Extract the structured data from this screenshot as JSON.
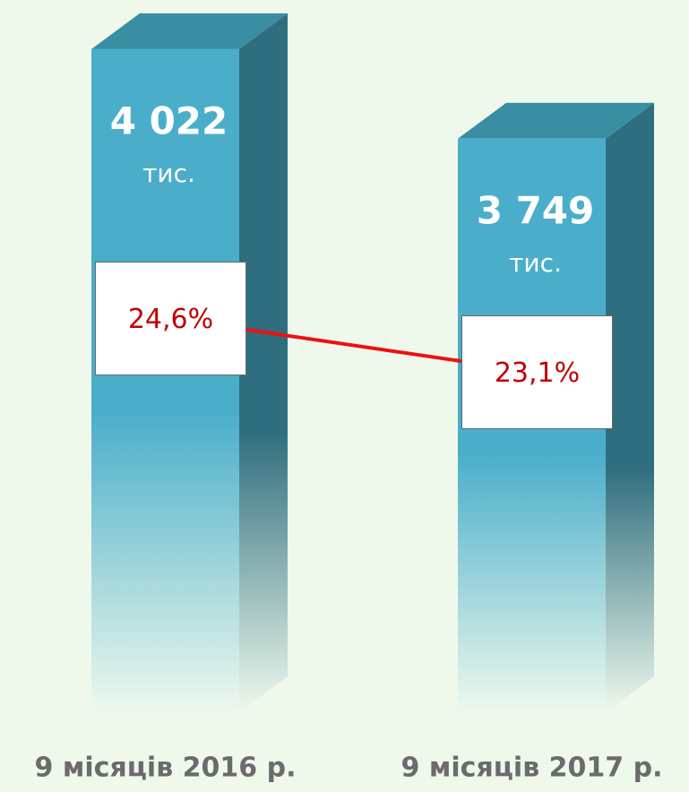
{
  "chart_data": {
    "type": "bar",
    "categories": [
      "9 місяців 2016 р.",
      "9 місяців 2017 р."
    ],
    "value_unit": "тис.",
    "series": [
      {
        "values": [
          4022,
          3749
        ],
        "value_labels": [
          "4 022",
          "3 749"
        ],
        "color": "#4aaecb"
      },
      {
        "type": "line",
        "axis": "y2",
        "values": [
          24.6,
          23.1
        ],
        "value_labels": [
          "24,6%",
          "23,1%"
        ],
        "color": "#ee1111"
      }
    ],
    "ylim": [
      2000,
      4150
    ],
    "y2lim": [
      13.6,
      33.3
    ]
  }
}
